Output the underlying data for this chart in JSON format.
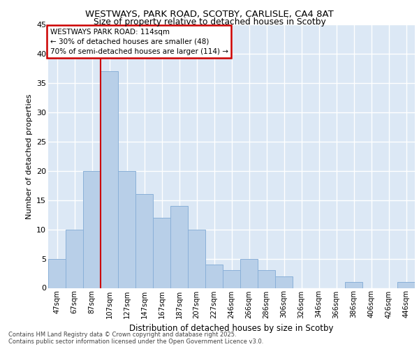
{
  "title1": "WESTWAYS, PARK ROAD, SCOTBY, CARLISLE, CA4 8AT",
  "title2": "Size of property relative to detached houses in Scotby",
  "xlabel": "Distribution of detached houses by size in Scotby",
  "ylabel": "Number of detached properties",
  "annotation_line1": "WESTWAYS PARK ROAD: 114sqm",
  "annotation_line2": "← 30% of detached houses are smaller (48)",
  "annotation_line3": "70% of semi-detached houses are larger (114) →",
  "footer_line1": "Contains HM Land Registry data © Crown copyright and database right 2025.",
  "footer_line2": "Contains public sector information licensed under the Open Government Licence v3.0.",
  "categories": [
    "47sqm",
    "67sqm",
    "87sqm",
    "107sqm",
    "127sqm",
    "147sqm",
    "167sqm",
    "187sqm",
    "207sqm",
    "227sqm",
    "246sqm",
    "266sqm",
    "286sqm",
    "306sqm",
    "326sqm",
    "346sqm",
    "366sqm",
    "386sqm",
    "406sqm",
    "426sqm",
    "446sqm"
  ],
  "values": [
    5,
    10,
    20,
    37,
    20,
    16,
    12,
    14,
    10,
    4,
    3,
    5,
    3,
    2,
    0,
    0,
    0,
    1,
    0,
    0,
    1
  ],
  "bar_color": "#b8cfe8",
  "bar_edge_color": "#8ab0d8",
  "vline_color": "#cc0000",
  "vline_index": 3,
  "annotation_box_edge_color": "#cc0000",
  "background_color": "#dce8f5",
  "grid_color": "#ffffff",
  "ylim": [
    0,
    45
  ],
  "yticks": [
    0,
    5,
    10,
    15,
    20,
    25,
    30,
    35,
    40,
    45
  ]
}
